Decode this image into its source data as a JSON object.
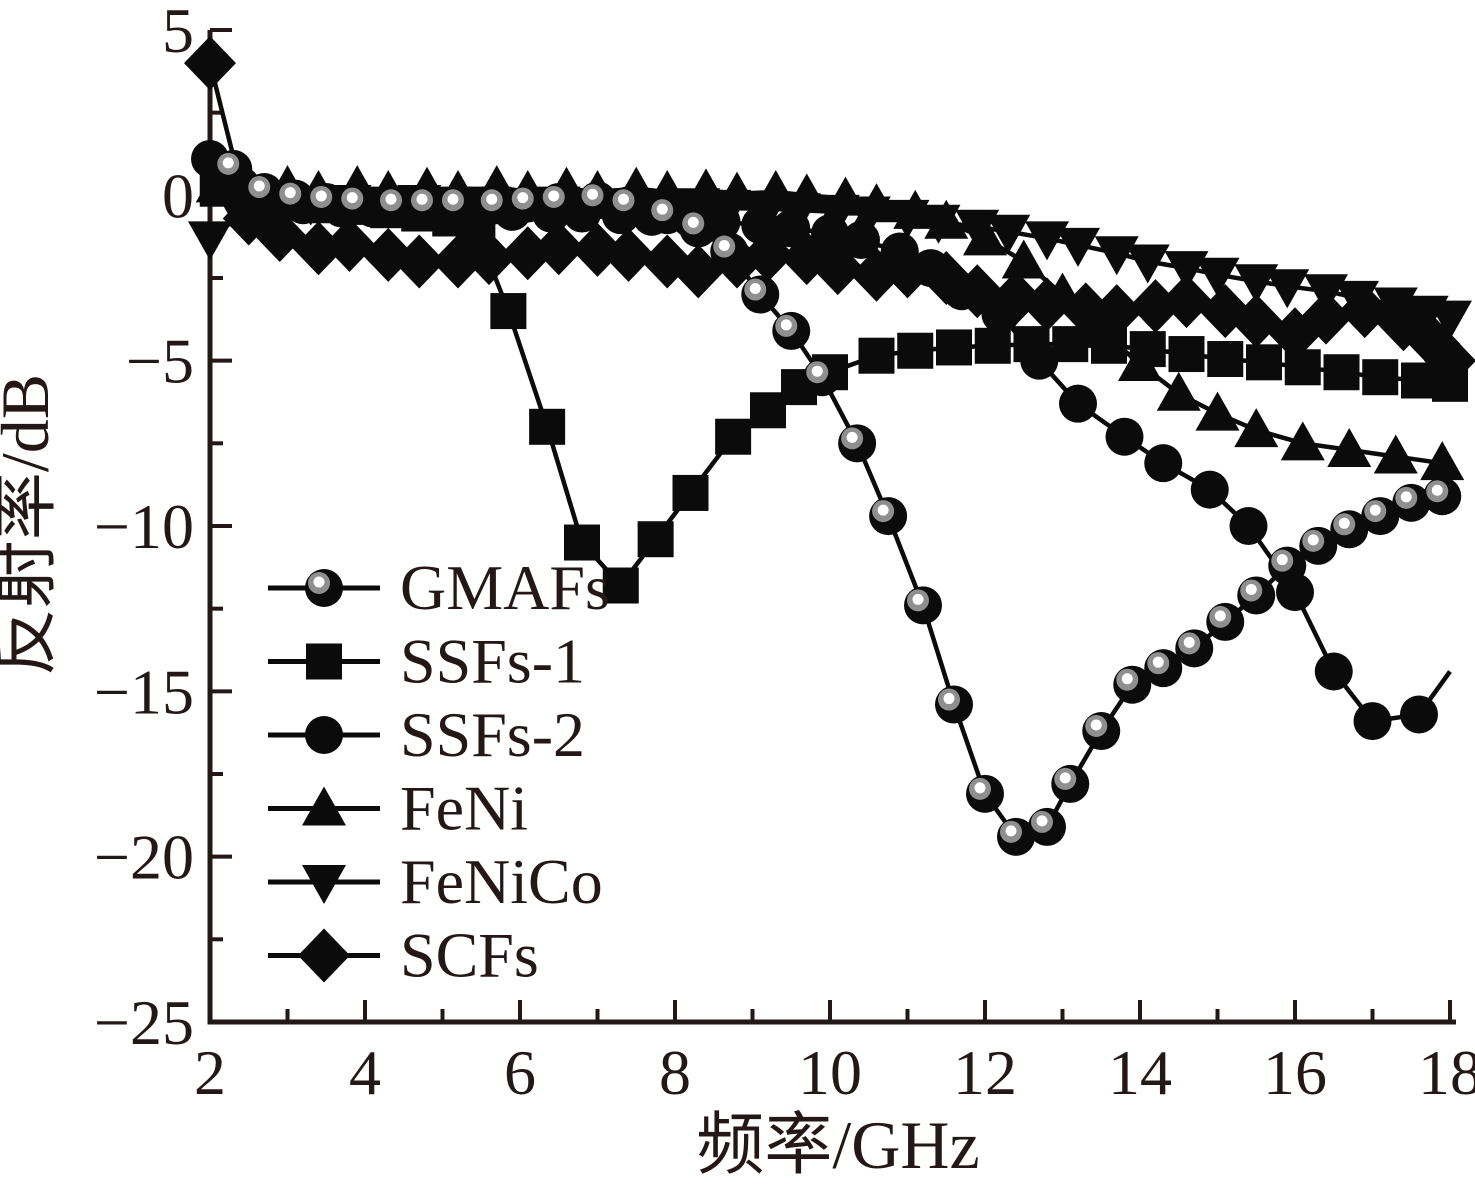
{
  "figure": {
    "background": "#ffffff",
    "text_color": "#231815",
    "ink_color": "#0b0b0b"
  },
  "chart_data": {
    "type": "line",
    "title": "",
    "xlabel": "频率/GHz",
    "ylabel": "反射率/dB",
    "xlim": [
      2,
      18
    ],
    "ylim": [
      -25,
      5
    ],
    "grid": false,
    "legend_position": "inside-left-middle",
    "x_major_ticks": [
      2,
      4,
      6,
      8,
      10,
      12,
      14,
      16,
      18
    ],
    "x_major_tick_labels": [
      "2",
      "4",
      "6",
      "8",
      "10",
      "12",
      "14",
      "16",
      "18"
    ],
    "x_minor_ticks": [
      3,
      5,
      7,
      9,
      11,
      13,
      15,
      17
    ],
    "y_major_ticks": [
      5,
      0,
      -5,
      -10,
      -15,
      -20,
      -25
    ],
    "y_major_tick_labels": [
      "5",
      "0",
      "−5",
      "−10",
      "−15",
      "−20",
      "−25"
    ],
    "y_minor_ticks": [
      2.5,
      -2.5,
      -7.5,
      -12.5,
      -17.5,
      -22.5
    ],
    "series": [
      {
        "name": "FeNiCo",
        "marker": "triangle-down",
        "color": "#0b0b0b",
        "points": [
          [
            2.0,
            -1.3
          ],
          [
            2.4,
            -0.6
          ],
          [
            2.9,
            -0.35
          ],
          [
            3.3,
            -0.25
          ],
          [
            3.8,
            -0.2
          ],
          [
            4.2,
            -0.25
          ],
          [
            4.7,
            -0.2
          ],
          [
            5.1,
            -0.25
          ],
          [
            5.6,
            -0.25
          ],
          [
            6.0,
            -0.3
          ],
          [
            6.5,
            -0.25
          ],
          [
            6.9,
            -0.3
          ],
          [
            7.4,
            -0.3
          ],
          [
            7.8,
            -0.35
          ],
          [
            8.3,
            -0.3
          ],
          [
            8.7,
            -0.35
          ],
          [
            9.2,
            -0.4
          ],
          [
            9.6,
            -0.45
          ],
          [
            10.1,
            -0.5
          ],
          [
            10.5,
            -0.55
          ],
          [
            11.0,
            -0.65
          ],
          [
            11.4,
            -0.8
          ],
          [
            11.9,
            -0.95
          ],
          [
            12.3,
            -1.1
          ],
          [
            12.8,
            -1.3
          ],
          [
            13.2,
            -1.5
          ],
          [
            13.7,
            -1.75
          ],
          [
            14.1,
            -2.0
          ],
          [
            14.6,
            -2.2
          ],
          [
            15.0,
            -2.4
          ],
          [
            15.5,
            -2.6
          ],
          [
            15.9,
            -2.75
          ],
          [
            16.4,
            -2.9
          ],
          [
            16.8,
            -3.1
          ],
          [
            17.3,
            -3.3
          ],
          [
            17.7,
            -3.55
          ],
          [
            18.0,
            -3.7
          ]
        ]
      },
      {
        "name": "FeNi",
        "marker": "triangle-up",
        "color": "#0b0b0b",
        "points": [
          [
            2.1,
            0.3
          ],
          [
            2.5,
            0.15
          ],
          [
            3.0,
            0.25
          ],
          [
            3.4,
            0.1
          ],
          [
            3.9,
            0.25
          ],
          [
            4.3,
            0.1
          ],
          [
            4.8,
            0.2
          ],
          [
            5.2,
            0.1
          ],
          [
            5.7,
            0.25
          ],
          [
            6.1,
            0.1
          ],
          [
            6.6,
            0.2
          ],
          [
            7.0,
            0.1
          ],
          [
            7.5,
            0.2
          ],
          [
            7.9,
            0.1
          ],
          [
            8.4,
            0.15
          ],
          [
            8.8,
            0.05
          ],
          [
            9.3,
            0.1
          ],
          [
            9.7,
            0.0
          ],
          [
            10.2,
            -0.1
          ],
          [
            10.6,
            -0.3
          ],
          [
            11.1,
            -0.5
          ],
          [
            11.5,
            -0.8
          ],
          [
            12.0,
            -1.3
          ],
          [
            12.5,
            -2.0
          ],
          [
            13.0,
            -3.0
          ],
          [
            13.5,
            -4.1
          ],
          [
            14.0,
            -5.1
          ],
          [
            14.5,
            -6.0
          ],
          [
            15.0,
            -6.6
          ],
          [
            15.5,
            -7.1
          ],
          [
            16.1,
            -7.5
          ],
          [
            16.7,
            -7.7
          ],
          [
            17.3,
            -7.9
          ],
          [
            17.9,
            -8.1
          ]
        ],
        "tail": [
          18.0,
          -8.05
        ]
      },
      {
        "name": "SCFs",
        "marker": "diamond",
        "color": "#0b0b0b",
        "points": [
          [
            2.0,
            4.0
          ],
          [
            2.5,
            -0.7
          ],
          [
            2.9,
            -1.2
          ],
          [
            3.4,
            -1.6
          ],
          [
            3.8,
            -1.5
          ],
          [
            4.3,
            -1.8
          ],
          [
            4.7,
            -2.0
          ],
          [
            5.2,
            -2.0
          ],
          [
            5.6,
            -1.9
          ],
          [
            6.1,
            -1.75
          ],
          [
            6.5,
            -1.6
          ],
          [
            7.0,
            -1.65
          ],
          [
            7.4,
            -1.8
          ],
          [
            7.9,
            -2.0
          ],
          [
            8.3,
            -2.3
          ],
          [
            8.8,
            -2.0
          ],
          [
            9.2,
            -1.8
          ],
          [
            9.7,
            -1.9
          ],
          [
            10.1,
            -2.2
          ],
          [
            10.6,
            -2.4
          ],
          [
            11.0,
            -2.3
          ],
          [
            11.5,
            -2.5
          ],
          [
            11.9,
            -2.9
          ],
          [
            12.4,
            -3.1
          ],
          [
            12.8,
            -3.3
          ],
          [
            13.3,
            -3.45
          ],
          [
            13.7,
            -3.5
          ],
          [
            14.2,
            -3.35
          ],
          [
            14.6,
            -3.2
          ],
          [
            15.1,
            -3.5
          ],
          [
            15.5,
            -3.8
          ],
          [
            16.0,
            -4.2
          ],
          [
            16.4,
            -3.7
          ],
          [
            16.9,
            -3.5
          ],
          [
            17.4,
            -3.9
          ],
          [
            17.8,
            -4.5
          ],
          [
            18.0,
            -5.0
          ]
        ]
      },
      {
        "name": "SSFs-2",
        "marker": "circle",
        "color": "#0b0b0b",
        "points": [
          [
            2.0,
            1.1
          ],
          [
            2.4,
            0.3
          ],
          [
            2.8,
            -0.1
          ],
          [
            3.2,
            -0.3
          ],
          [
            3.7,
            -0.4
          ],
          [
            4.1,
            -0.4
          ],
          [
            4.6,
            -0.45
          ],
          [
            5.0,
            -0.45
          ],
          [
            5.5,
            -0.5
          ],
          [
            5.9,
            -0.5
          ],
          [
            6.4,
            -0.55
          ],
          [
            6.8,
            -0.55
          ],
          [
            7.3,
            -0.6
          ],
          [
            7.7,
            -0.65
          ],
          [
            8.2,
            -0.7
          ],
          [
            8.6,
            -0.8
          ],
          [
            9.1,
            -0.9
          ],
          [
            9.5,
            -1.0
          ],
          [
            10.0,
            -1.15
          ],
          [
            10.4,
            -1.35
          ],
          [
            10.9,
            -1.7
          ],
          [
            11.3,
            -2.2
          ],
          [
            11.7,
            -2.9
          ],
          [
            12.2,
            -3.6
          ],
          [
            12.7,
            -5.0
          ],
          [
            13.2,
            -6.3
          ],
          [
            13.8,
            -7.3
          ],
          [
            14.3,
            -8.1
          ],
          [
            14.9,
            -8.9
          ],
          [
            15.4,
            -10.0
          ],
          [
            16.0,
            -12.0
          ],
          [
            16.5,
            -14.4
          ],
          [
            17.0,
            -15.9
          ],
          [
            17.6,
            -15.7
          ]
        ],
        "tail": [
          18.0,
          -14.4
        ]
      },
      {
        "name": "SSFs-1",
        "marker": "square",
        "color": "#0b0b0b",
        "points": [
          [
            2.1,
            0.2
          ],
          [
            2.5,
            0.0
          ],
          [
            2.9,
            -0.2
          ],
          [
            3.4,
            -0.3
          ],
          [
            3.8,
            -0.35
          ],
          [
            4.3,
            -0.45
          ],
          [
            4.7,
            -0.55
          ],
          [
            5.1,
            -0.7
          ],
          [
            5.45,
            -1.1
          ],
          [
            5.85,
            -3.5
          ],
          [
            6.35,
            -7.0
          ],
          [
            6.8,
            -10.5
          ],
          [
            7.3,
            -11.8
          ],
          [
            7.75,
            -10.4
          ],
          [
            8.2,
            -9.0
          ],
          [
            8.75,
            -7.3
          ],
          [
            9.2,
            -6.5
          ],
          [
            9.6,
            -5.8
          ],
          [
            10.0,
            -5.35
          ],
          [
            10.6,
            -4.85
          ],
          [
            11.1,
            -4.7
          ],
          [
            11.6,
            -4.6
          ],
          [
            12.1,
            -4.55
          ],
          [
            12.6,
            -4.5
          ],
          [
            13.1,
            -4.5
          ],
          [
            13.6,
            -4.55
          ],
          [
            14.1,
            -4.65
          ],
          [
            14.6,
            -4.8
          ],
          [
            15.1,
            -4.95
          ],
          [
            15.6,
            -5.05
          ],
          [
            16.1,
            -5.2
          ],
          [
            16.6,
            -5.35
          ],
          [
            17.1,
            -5.5
          ],
          [
            17.6,
            -5.6
          ],
          [
            18.0,
            -5.7
          ]
        ]
      },
      {
        "name": "GMAFs",
        "marker": "pearl-circle",
        "color": "#0b0b0b",
        "points": [
          [
            2.3,
            0.8
          ],
          [
            2.7,
            0.1
          ],
          [
            3.1,
            -0.1
          ],
          [
            3.5,
            -0.2
          ],
          [
            3.9,
            -0.25
          ],
          [
            4.4,
            -0.3
          ],
          [
            4.8,
            -0.3
          ],
          [
            5.2,
            -0.3
          ],
          [
            5.7,
            -0.3
          ],
          [
            6.1,
            -0.25
          ],
          [
            6.5,
            -0.2
          ],
          [
            7.0,
            -0.15
          ],
          [
            7.4,
            -0.3
          ],
          [
            7.9,
            -0.6
          ],
          [
            8.3,
            -1.0
          ],
          [
            8.7,
            -1.7
          ],
          [
            9.1,
            -3.0
          ],
          [
            9.5,
            -4.1
          ],
          [
            9.9,
            -5.5
          ],
          [
            10.35,
            -7.5
          ],
          [
            10.75,
            -9.7
          ],
          [
            11.2,
            -12.4
          ],
          [
            11.6,
            -15.4
          ],
          [
            12.0,
            -18.1
          ],
          [
            12.4,
            -19.4
          ],
          [
            12.8,
            -19.1
          ],
          [
            13.1,
            -17.8
          ],
          [
            13.5,
            -16.2
          ],
          [
            13.9,
            -14.8
          ],
          [
            14.3,
            -14.3
          ],
          [
            14.7,
            -13.7
          ],
          [
            15.1,
            -12.9
          ],
          [
            15.5,
            -12.1
          ],
          [
            15.9,
            -11.2
          ],
          [
            16.3,
            -10.6
          ],
          [
            16.7,
            -10.1
          ],
          [
            17.1,
            -9.7
          ],
          [
            17.5,
            -9.3
          ],
          [
            17.9,
            -9.1
          ]
        ]
      }
    ],
    "legend": [
      {
        "label": "GMAFs",
        "marker": "pearl-circle"
      },
      {
        "label": "SSFs-1",
        "marker": "square"
      },
      {
        "label": "SSFs-2",
        "marker": "circle"
      },
      {
        "label": "FeNi",
        "marker": "triangle-up"
      },
      {
        "label": "FeNiCo",
        "marker": "triangle-down"
      },
      {
        "label": "SCFs",
        "marker": "diamond"
      }
    ]
  }
}
